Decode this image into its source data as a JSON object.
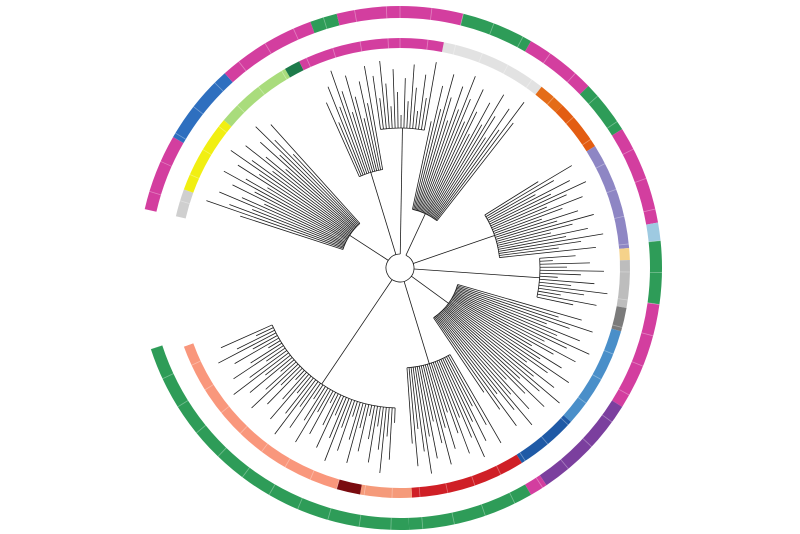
{
  "figure": {
    "type": "circular-phylogenetic-tree",
    "title": "",
    "colors": {
      "background": "#ffffff",
      "branch": "#1a1a1a"
    }
  },
  "inner_ring": {
    "description_on_screen": "",
    "segments": [
      {
        "start": 11,
        "end": 38,
        "color": "#e2e2e2",
        "start_deg": 11,
        "end_deg": 38
      },
      {
        "start": 38,
        "end": 45,
        "color": "#e46c18"
      },
      {
        "start": 45,
        "end": 58,
        "color": "#e35d12"
      },
      {
        "start": 58,
        "end": 85,
        "color": "#8e86c4"
      },
      {
        "start": 85,
        "end": 88,
        "color": "#f5d28a"
      },
      {
        "start": 88,
        "end": 100,
        "color": "#bdbdbd"
      },
      {
        "start": 100,
        "end": 106,
        "color": "#7b7b7b"
      },
      {
        "start": 106,
        "end": 132,
        "color": "#4a8fc9"
      },
      {
        "start": 132,
        "end": 148,
        "color": "#1f5aa6"
      },
      {
        "start": 148,
        "end": 177,
        "color": "#cf1f26"
      },
      {
        "start": 177,
        "end": 190,
        "color": "#f59a7a"
      },
      {
        "start": 190,
        "end": 196,
        "color": "#7a0b0f"
      },
      {
        "start": 196,
        "end": 250,
        "color": "#f9977c"
      },
      {
        "start": 250,
        "end": 283,
        "color": "#ffffff"
      },
      {
        "start": 283,
        "end": 290,
        "color": "#cfcfcf"
      },
      {
        "start": 290,
        "end": 310,
        "color": "#f1ef12"
      },
      {
        "start": 310,
        "end": 330,
        "color": "#a9dc7c"
      },
      {
        "start": 330,
        "end": 334,
        "color": "#1d7a4a"
      },
      {
        "start": 334,
        "end": 371,
        "color": "#d33e9f"
      }
    ]
  },
  "outer_ring": {
    "description_on_screen": "",
    "segments": [
      {
        "start": 0,
        "end": 14,
        "color": "#d33e9f"
      },
      {
        "start": 14,
        "end": 30,
        "color": "#2e9c58"
      },
      {
        "start": 30,
        "end": 46,
        "color": "#d33e9f"
      },
      {
        "start": 46,
        "end": 58,
        "color": "#2e9c58"
      },
      {
        "start": 58,
        "end": 80,
        "color": "#d33e9f"
      },
      {
        "start": 80,
        "end": 84,
        "color": "#9ecae1"
      },
      {
        "start": 84,
        "end": 98,
        "color": "#2e9c58"
      },
      {
        "start": 98,
        "end": 122,
        "color": "#d33e9f"
      },
      {
        "start": 122,
        "end": 146,
        "color": "#7b3f9e"
      },
      {
        "start": 146,
        "end": 150,
        "color": "#d33e9f"
      },
      {
        "start": 150,
        "end": 178,
        "color": "#2e9c58"
      },
      {
        "start": 178,
        "end": 252,
        "color": "#2e9c58"
      },
      {
        "start": 252,
        "end": 283,
        "color": "#ffffff"
      },
      {
        "start": 283,
        "end": 300,
        "color": "#d33e9f"
      },
      {
        "start": 300,
        "end": 318,
        "color": "#2e6fbf"
      },
      {
        "start": 318,
        "end": 340,
        "color": "#d33e9f"
      },
      {
        "start": 340,
        "end": 346,
        "color": "#2e9c58"
      },
      {
        "start": 346,
        "end": 360,
        "color": "#d33e9f"
      }
    ]
  },
  "tree": {
    "clades": [
      {
        "from": 12,
        "to": 38
      },
      {
        "from": 58,
        "to": 84
      },
      {
        "from": 86,
        "to": 102
      },
      {
        "from": 106,
        "to": 146
      },
      {
        "from": 150,
        "to": 176
      },
      {
        "from": 182,
        "to": 246
      },
      {
        "from": 288,
        "to": 318
      },
      {
        "from": 336,
        "to": 350
      },
      {
        "from": 352,
        "to": 370
      }
    ]
  }
}
